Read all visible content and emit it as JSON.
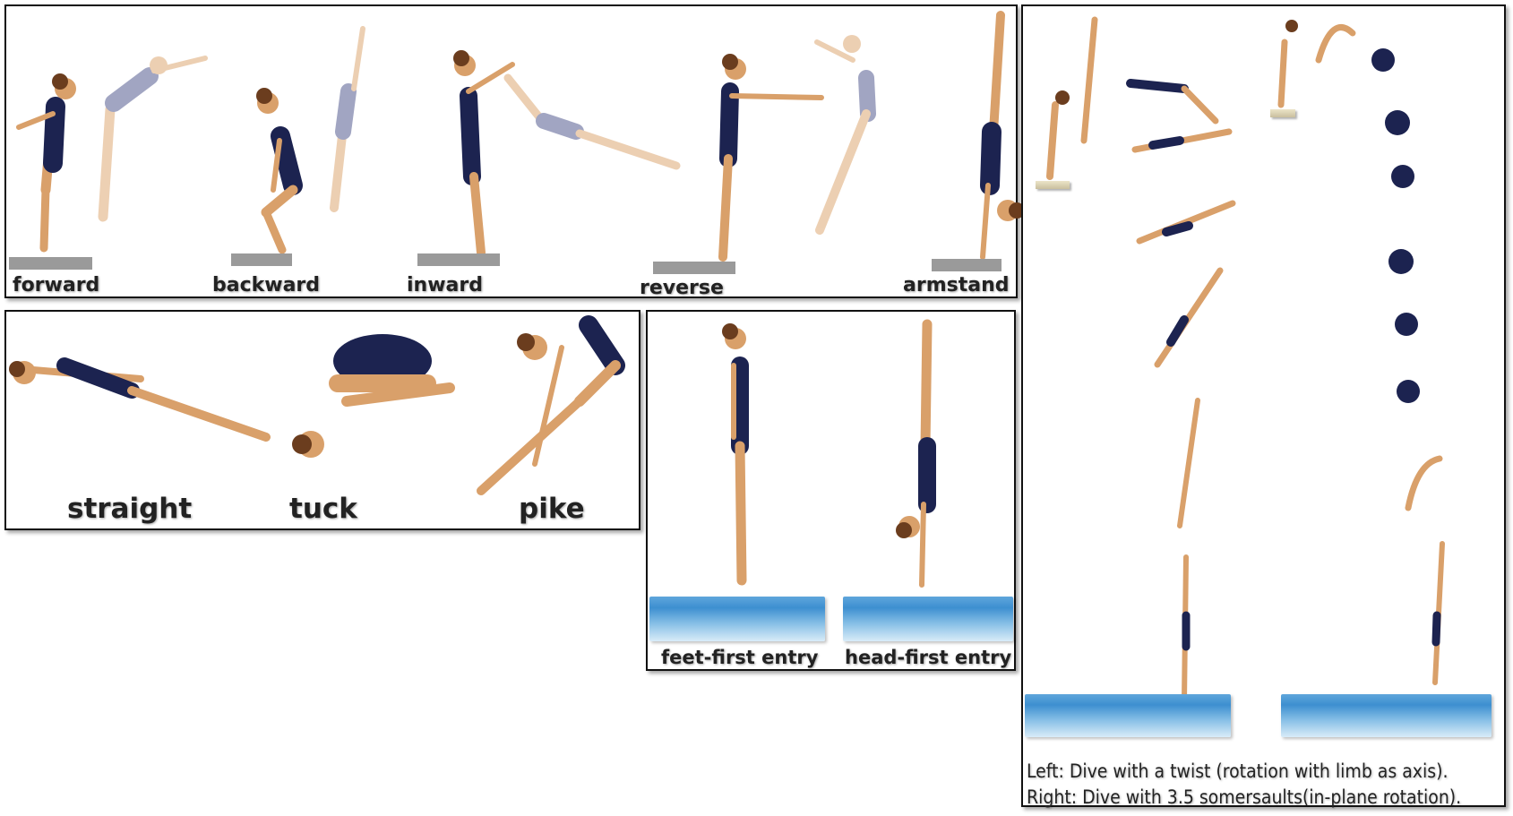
{
  "takeoff_panel": {
    "labels": [
      "forward",
      "backward",
      "inward",
      "reverse",
      "armstand"
    ]
  },
  "position_panel": {
    "labels": [
      "straight",
      "tuck",
      "pike"
    ]
  },
  "entry_panel": {
    "labels": [
      "feet-first entry",
      "head-first entry"
    ]
  },
  "rotation_panel": {
    "caption_left": "Left: Dive with a twist (rotation with limb as axis).",
    "caption_right": "Right: Dive with 3.5 somersaults(in-plane rotation)."
  },
  "colors": {
    "suit": "#1c2350",
    "skin": "#d9a06a",
    "hair": "#6b3d1e",
    "water": "#3d8fd0",
    "board": "#9a9a9a"
  }
}
